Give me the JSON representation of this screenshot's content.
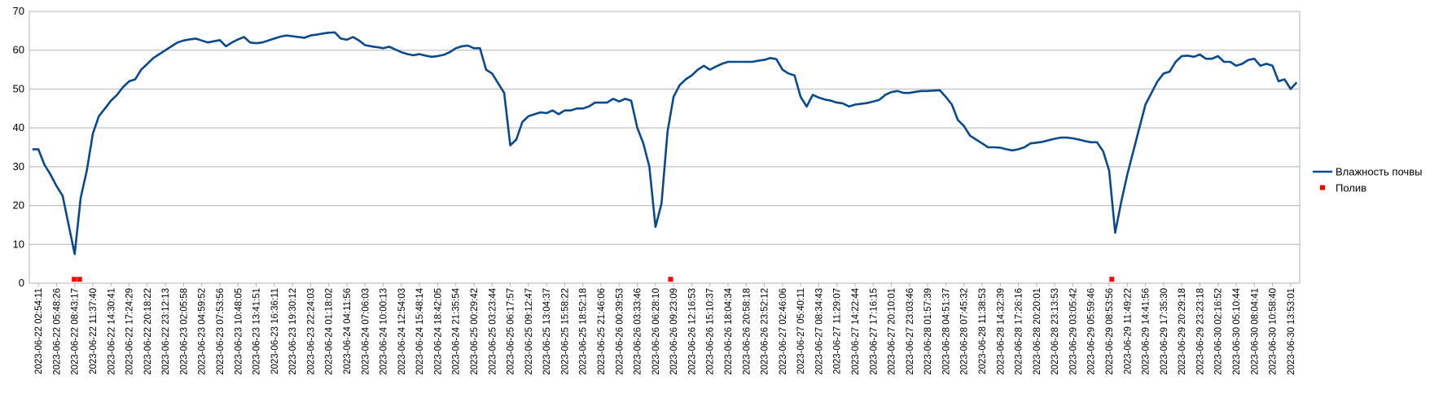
{
  "chart_data": {
    "type": "line",
    "title": "",
    "xlabel": "",
    "ylabel": "",
    "ylim": [
      0,
      70
    ],
    "yticks": [
      0,
      10,
      20,
      30,
      40,
      50,
      60,
      70
    ],
    "grid": true,
    "legend_position": "right",
    "colors": {
      "moisture": "#0a4a8c",
      "watering": "#ff0000",
      "grid": "#b3b3b3"
    },
    "x_tick_labels": [
      "2023-06-22 02:54:11",
      "2023-06-22 05:48:26",
      "2023-06-22 08:43:17",
      "2023-06-22 11:37:40",
      "2023-06-22 14:30:41",
      "2023-06-22 17:24:29",
      "2023-06-22 20:18:22",
      "2023-06-22 23:12:13",
      "2023-06-23 02:05:58",
      "2023-06-23 04:59:52",
      "2023-06-23 07:53:56",
      "2023-06-23 10:48:05",
      "2023-06-23 13:41:51",
      "2023-06-23 16:36:11",
      "2023-06-23 19:30:12",
      "2023-06-23 22:24:03",
      "2023-06-24 01:18:02",
      "2023-06-24 04:11:56",
      "2023-06-24 07:06:03",
      "2023-06-24 10:00:13",
      "2023-06-24 12:54:03",
      "2023-06-24 15:48:14",
      "2023-06-24 18:42:05",
      "2023-06-24 21:35:54",
      "2023-06-25 00:29:42",
      "2023-06-25 03:23:44",
      "2023-06-25 06:17:57",
      "2023-06-25 09:12:47",
      "2023-06-25 13:04:37",
      "2023-06-25 15:58:22",
      "2023-06-25 18:52:18",
      "2023-06-25 21:46:06",
      "2023-06-26 00:39:53",
      "2023-06-26 03:33:46",
      "2023-06-26 06:28:10",
      "2023-06-26 09:23:09",
      "2023-06-26 12:16:53",
      "2023-06-26 15:10:37",
      "2023-06-26 18:04:34",
      "2023-06-26 20:58:18",
      "2023-06-26 23:52:12",
      "2023-06-27 02:46:06",
      "2023-06-27 05:40:11",
      "2023-06-27 08:34:43",
      "2023-06-27 11:29:07",
      "2023-06-27 14:22:44",
      "2023-06-27 17:16:15",
      "2023-06-27 20:10:01",
      "2023-06-27 23:03:46",
      "2023-06-28 01:57:39",
      "2023-06-28 04:51:37",
      "2023-06-28 07:45:32",
      "2023-06-28 11:38:53",
      "2023-06-28 14:32:39",
      "2023-06-28 17:26:16",
      "2023-06-28 20:20:01",
      "2023-06-28 23:13:53",
      "2023-06-29 03:05:42",
      "2023-06-29 05:59:46",
      "2023-06-29 08:53:56",
      "2023-06-29 11:49:22",
      "2023-06-29 14:41:56",
      "2023-06-29 17:35:30",
      "2023-06-29 20:29:18",
      "2023-06-29 23:23:18",
      "2023-06-30 02:16:52",
      "2023-06-30 05:10:44",
      "2023-06-30 08:04:41",
      "2023-06-30 10:58:40",
      "2023-06-30 13:53:01"
    ],
    "series": [
      {
        "name": "Влажность почвы",
        "style": "line",
        "values": [
          34.5,
          34.5,
          30.5,
          28,
          25,
          22.5,
          15,
          7.5,
          22,
          29,
          38.5,
          43,
          45,
          47,
          48.5,
          50.5,
          52,
          52.5,
          55,
          56.5,
          58,
          59,
          60,
          61,
          62,
          62.5,
          62.8,
          63,
          62.5,
          62,
          62.3,
          62.6,
          61,
          62,
          62.8,
          63.4,
          62,
          61.8,
          62,
          62.5,
          63,
          63.5,
          63.8,
          63.6,
          63.4,
          63.2,
          63.8,
          64,
          64.3,
          64.5,
          64.6,
          63,
          62.7,
          63.4,
          62.5,
          61.3,
          61,
          60.8,
          60.5,
          60.9,
          60.2,
          59.5,
          59,
          58.7,
          59,
          58.6,
          58.3,
          58.5,
          58.8,
          59.5,
          60.5,
          61,
          61.2,
          60.5,
          60.5,
          55,
          54,
          51.5,
          49,
          35.5,
          37,
          41.5,
          43,
          43.5,
          44,
          43.8,
          44.5,
          43.5,
          44.5,
          44.5,
          45,
          45,
          45.5,
          46.5,
          46.5,
          46.5,
          47.5,
          46.8,
          47.5,
          47,
          40,
          36,
          30,
          14.5,
          20.5,
          39,
          48,
          51,
          52.5,
          53.5,
          55,
          56,
          55,
          55.8,
          56.5,
          57,
          57,
          57,
          57,
          57,
          57.3,
          57.5,
          58,
          57.7,
          55,
          54,
          53.5,
          48,
          45.5,
          48.5,
          47.8,
          47.3,
          47,
          46.5,
          46.3,
          45.5,
          46,
          46.2,
          46.4,
          46.8,
          47.2,
          48.5,
          49.2,
          49.5,
          49,
          49,
          49.3,
          49.5,
          49.5,
          49.6,
          49.7,
          48,
          46,
          42,
          40.5,
          38,
          37,
          36,
          35,
          35,
          34.9,
          34.5,
          34.2,
          34.5,
          35,
          36,
          36.2,
          36.4,
          36.8,
          37.2,
          37.5,
          37.5,
          37.3,
          37,
          36.6,
          36.3,
          36.3,
          34,
          29,
          13,
          21,
          28,
          34,
          40,
          46,
          49,
          52,
          54,
          54.5,
          57,
          58.5,
          58.6,
          58.3,
          58.9,
          57.8,
          57.8,
          58.5,
          57,
          57,
          56,
          56.5,
          57.5,
          57.8,
          56,
          56.5,
          56,
          52,
          52.5,
          50,
          51.7
        ]
      },
      {
        "name": "Полив",
        "style": "markers",
        "points": [
          {
            "x": "2023-06-22 08:43:17",
            "y": 1
          },
          {
            "x": "2023-06-22 09:35:00",
            "y": 1
          },
          {
            "x": "2023-06-26 09:23:09",
            "y": 1
          },
          {
            "x": "2023-06-29 08:53:56",
            "y": 1
          }
        ]
      }
    ]
  }
}
